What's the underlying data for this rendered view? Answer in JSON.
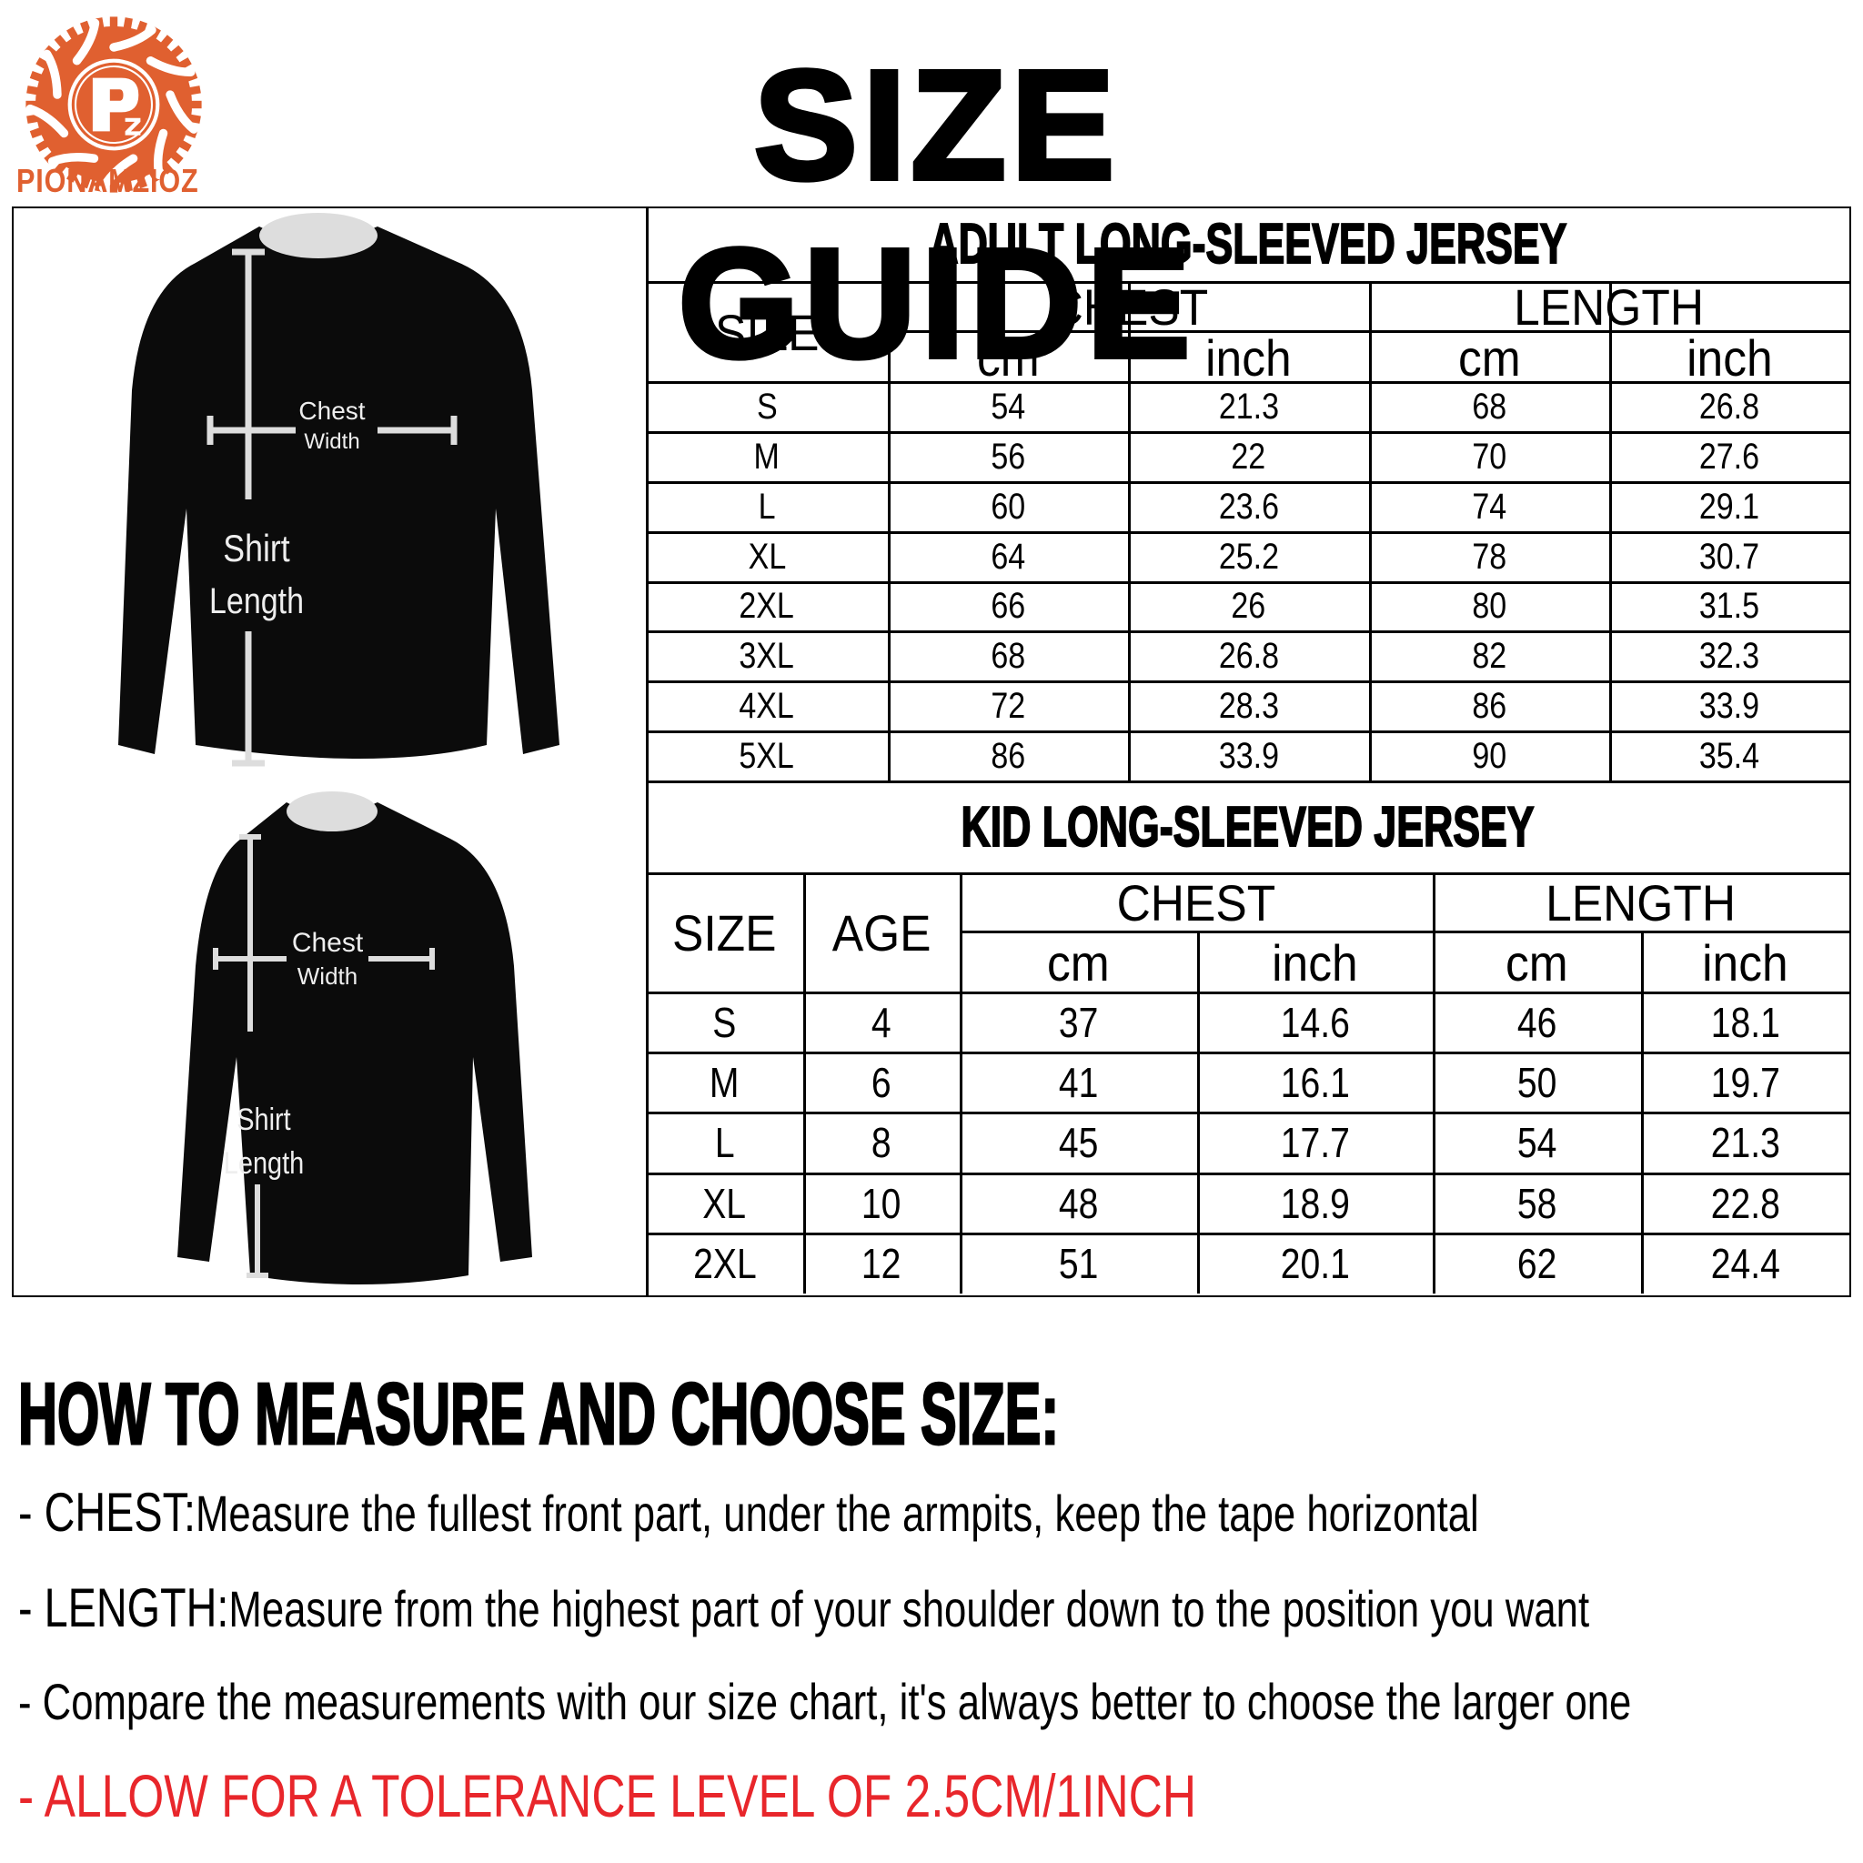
{
  "brand": {
    "name": "PIONAMZIOZ",
    "monogram": "Pz",
    "color": "#e06030"
  },
  "title": "SIZE GUIDE",
  "illustrations": {
    "adult": {
      "chest_label_1": "Chest",
      "chest_label_2": "Width",
      "length_label_1": "Shirt",
      "length_label_2": "Length"
    },
    "kid": {
      "chest_label_1": "Chest",
      "chest_label_2": "Width",
      "length_label_1": "Shirt",
      "length_label_2": "Length"
    }
  },
  "adult": {
    "title": "ADULT LONG-SLEEVED JERSEY",
    "headers": {
      "size": "SIZE",
      "chest": "CHEST",
      "length": "LENGTH",
      "cm": "cm",
      "inch": "inch"
    },
    "rows": [
      [
        "S",
        "54",
        "21.3",
        "68",
        "26.8"
      ],
      [
        "M",
        "56",
        "22",
        "70",
        "27.6"
      ],
      [
        "L",
        "60",
        "23.6",
        "74",
        "29.1"
      ],
      [
        "XL",
        "64",
        "25.2",
        "78",
        "30.7"
      ],
      [
        "2XL",
        "66",
        "26",
        "80",
        "31.5"
      ],
      [
        "3XL",
        "68",
        "26.8",
        "82",
        "32.3"
      ],
      [
        "4XL",
        "72",
        "28.3",
        "86",
        "33.9"
      ],
      [
        "5XL",
        "86",
        "33.9",
        "90",
        "35.4"
      ]
    ]
  },
  "kid": {
    "title": "KID LONG-SLEEVED JERSEY",
    "headers": {
      "size": "SIZE",
      "age": "AGE",
      "chest": "CHEST",
      "length": "LENGTH",
      "cm": "cm",
      "inch": "inch"
    },
    "rows": [
      [
        "S",
        "4",
        "37",
        "14.6",
        "46",
        "18.1"
      ],
      [
        "M",
        "6",
        "41",
        "16.1",
        "50",
        "19.7"
      ],
      [
        "L",
        "8",
        "45",
        "17.7",
        "54",
        "21.3"
      ],
      [
        "XL",
        "10",
        "48",
        "18.9",
        "58",
        "22.8"
      ],
      [
        "2XL",
        "12",
        "51",
        "20.1",
        "62",
        "24.4"
      ]
    ]
  },
  "instructions": {
    "heading": "HOW TO MEASURE AND CHOOSE SIZE:",
    "chest_label": "- CHEST:",
    "chest_text": "Measure the fullest front part, under the armpits, keep the tape horizontal",
    "length_label": "- LENGTH:",
    "length_text": "Measure from the highest part of your shoulder down to the position you want",
    "compare_text": "- Compare the measurements with our size chart, it's always better to choose the larger one",
    "tolerance_text": "- ALLOW FOR A TOLERANCE LEVEL OF 2.5CM/1INCH",
    "tolerance_color": "#e8262b"
  }
}
